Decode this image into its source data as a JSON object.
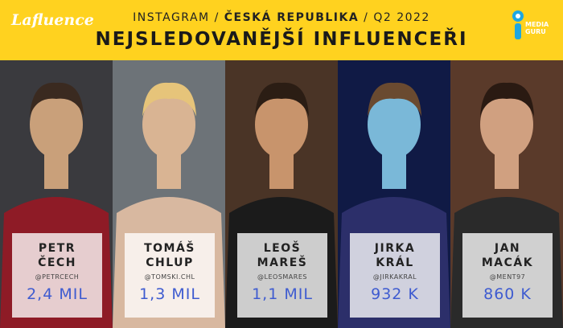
{
  "header": {
    "logo": "Lafluence",
    "platform": "INSTAGRAM",
    "separator": "/",
    "country": "ČESKÁ REPUBLIKA",
    "period": "Q2 2022",
    "title": "NEJSLEDOVANĚJŠÍ INFLUENCEŘI",
    "partner_logo": [
      "MEDIA",
      "GURU"
    ]
  },
  "influencers": [
    {
      "first_name": "PETR",
      "last_name": "ČECH",
      "handle": "@PETRCECH",
      "followers": "2,4 MIL"
    },
    {
      "first_name": "TOMÁŠ",
      "last_name": "CHLUP",
      "handle": "@TOMSKI.CHL",
      "followers": "1,3 MIL"
    },
    {
      "first_name": "LEOŠ",
      "last_name": "MAREŠ",
      "handle": "@LEOSMARES",
      "followers": "1,1 MIL"
    },
    {
      "first_name": "JIRKA",
      "last_name": "KRÁL",
      "handle": "@JIRKAKRAL",
      "followers": "932 K"
    },
    {
      "first_name": "JAN",
      "last_name": "MACÁK",
      "handle": "@MENT97",
      "followers": "860 K"
    }
  ]
}
